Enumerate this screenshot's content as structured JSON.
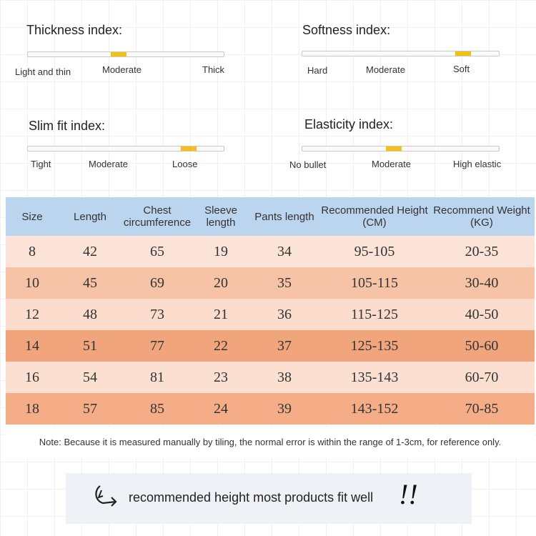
{
  "indices": [
    {
      "title": "Thickness index:",
      "labels": [
        "Light and thin",
        "Moderate",
        "Thick"
      ]
    },
    {
      "title": "Softness index:",
      "labels": [
        "Hard",
        "Moderate",
        "Soft"
      ]
    },
    {
      "title": "Slim fit index:",
      "labels": [
        "Tight",
        "Moderate",
        "Loose"
      ]
    },
    {
      "title": "Elasticity index:",
      "labels": [
        "No bullet",
        "Moderate",
        "High elastic"
      ]
    }
  ],
  "table": {
    "header": [
      "Size",
      "Length",
      "Chest circumference",
      "Sleeve length",
      "Pants length",
      "Recommended Height (CM)",
      "Recommend Weight (KG)"
    ],
    "rows": [
      [
        8,
        42,
        65,
        19,
        34,
        "95-105",
        "20-35"
      ],
      [
        10,
        45,
        69,
        20,
        35,
        "105-115",
        "30-40"
      ],
      [
        12,
        48,
        73,
        21,
        36,
        "115-125",
        "40-50"
      ],
      [
        14,
        51,
        77,
        22,
        37,
        "125-135",
        "50-60"
      ],
      [
        16,
        54,
        81,
        23,
        38,
        "135-143",
        "60-70"
      ],
      [
        18,
        57,
        85,
        24,
        39,
        "143-152",
        "70-85"
      ]
    ]
  },
  "note": "Note: Because it is measured manually by tiling, the normal error is within the range of 1-3cm, for reference only.",
  "banner": {
    "text": "recommended height most products fit well",
    "exclamation": "!!"
  }
}
